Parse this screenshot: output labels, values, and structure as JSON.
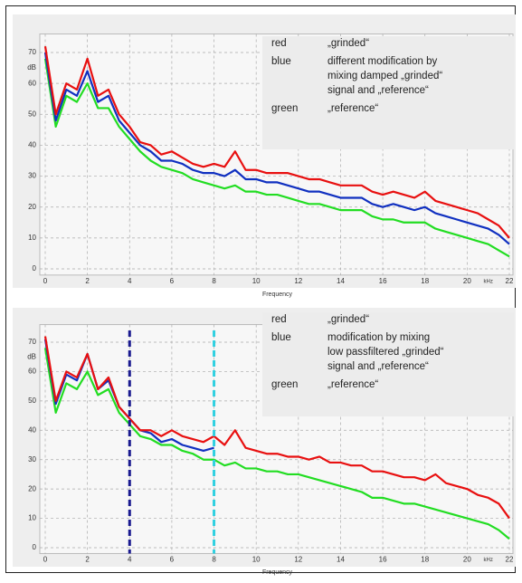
{
  "chart_data": [
    {
      "type": "line",
      "x_label": "Frequency",
      "x_unit": "kHz",
      "y_unit": "dB",
      "xlim": [
        0,
        22
      ],
      "xticks": [
        0,
        2,
        4,
        6,
        8,
        10,
        12,
        14,
        16,
        18,
        20,
        22
      ],
      "ylim": [
        -2,
        76
      ],
      "yticks": [
        0,
        10,
        20,
        30,
        40,
        50,
        60,
        70
      ],
      "grid": true,
      "x": [
        0,
        0.5,
        1,
        1.5,
        2,
        2.5,
        3,
        3.5,
        4,
        4.5,
        5,
        5.5,
        6,
        6.5,
        7,
        7.5,
        8,
        8.5,
        9,
        9.5,
        10,
        10.5,
        11,
        11.5,
        12,
        12.5,
        13,
        13.5,
        14,
        14.5,
        15,
        15.5,
        16,
        16.5,
        17,
        17.5,
        18,
        18.5,
        19,
        19.5,
        20,
        20.5,
        21,
        21.5,
        22
      ],
      "series": [
        {
          "name": "green",
          "color": "#22dd22",
          "description": [
            "„reference“"
          ],
          "values": [
            68,
            46,
            56,
            54,
            60,
            52,
            52,
            46,
            42,
            38,
            35,
            33,
            32,
            31,
            29,
            28,
            27,
            26,
            27,
            25,
            25,
            24,
            24,
            23,
            22,
            21,
            21,
            20,
            19,
            19,
            19,
            17,
            16,
            16,
            15,
            15,
            15,
            13,
            12,
            11,
            10,
            9,
            8,
            6,
            4
          ]
        },
        {
          "name": "blue",
          "color": "#1030c0",
          "description": [
            "different modification by",
            "mixing damped „grinded“",
            "signal and „reference“"
          ],
          "values": [
            70,
            48,
            58,
            56,
            64,
            54,
            56,
            48,
            44,
            40,
            38,
            35,
            35,
            34,
            32,
            31,
            31,
            30,
            32,
            29,
            29,
            28,
            28,
            27,
            26,
            25,
            25,
            24,
            23,
            23,
            23,
            21,
            20,
            21,
            20,
            19,
            20,
            18,
            17,
            16,
            15,
            14,
            13,
            11,
            8
          ]
        },
        {
          "name": "red",
          "color": "#e81010",
          "description": [
            "„grinded“"
          ],
          "values": [
            72,
            50,
            60,
            58,
            68,
            56,
            58,
            50,
            46,
            41,
            40,
            37,
            38,
            36,
            34,
            33,
            34,
            33,
            38,
            32,
            32,
            31,
            31,
            31,
            30,
            29,
            29,
            28,
            27,
            27,
            27,
            25,
            24,
            25,
            24,
            23,
            25,
            22,
            21,
            20,
            19,
            18,
            16,
            14,
            10
          ]
        }
      ]
    },
    {
      "type": "line",
      "x_label": "Frequency",
      "x_unit": "kHz",
      "y_unit": "dB",
      "xlim": [
        0,
        22
      ],
      "xticks": [
        0,
        2,
        4,
        6,
        8,
        10,
        12,
        14,
        16,
        18,
        20,
        22
      ],
      "ylim": [
        -2,
        76
      ],
      "yticks": [
        0,
        10,
        20,
        30,
        40,
        50,
        60,
        70
      ],
      "grid": true,
      "vlines": [
        {
          "x": 4,
          "color": "#1a1a90"
        },
        {
          "x": 8,
          "color": "#30d0e0"
        }
      ],
      "x": [
        0,
        0.5,
        1,
        1.5,
        2,
        2.5,
        3,
        3.5,
        4,
        4.5,
        5,
        5.5,
        6,
        6.5,
        7,
        7.5,
        8,
        8.5,
        9,
        9.5,
        10,
        10.5,
        11,
        11.5,
        12,
        12.5,
        13,
        13.5,
        14,
        14.5,
        15,
        15.5,
        16,
        16.5,
        17,
        17.5,
        18,
        18.5,
        19,
        19.5,
        20,
        20.5,
        21,
        21.5,
        22
      ],
      "series": [
        {
          "name": "green",
          "color": "#22dd22",
          "description": [
            "„reference“"
          ],
          "values": [
            68,
            46,
            56,
            54,
            60,
            52,
            54,
            46,
            42,
            38,
            37,
            35,
            35,
            33,
            32,
            30,
            30,
            28,
            29,
            27,
            27,
            26,
            26,
            25,
            25,
            24,
            23,
            22,
            21,
            20,
            19,
            17,
            17,
            16,
            15,
            15,
            14,
            13,
            12,
            11,
            10,
            9,
            8,
            6,
            3
          ]
        },
        {
          "name": "blue",
          "color": "#1030c0",
          "description": [
            "modification by mixing",
            "low passfiltered „grinded“",
            "signal and „reference“"
          ],
          "values": [
            71,
            49,
            59,
            57,
            66,
            54,
            57,
            48,
            44,
            40,
            39,
            36,
            37,
            35,
            34,
            33,
            34,
            null,
            null,
            null,
            null,
            null,
            null,
            null,
            null,
            null,
            null,
            null,
            null,
            null,
            null,
            null,
            null,
            null,
            null,
            null,
            null,
            null,
            null,
            null,
            null,
            null,
            null,
            null,
            null
          ]
        },
        {
          "name": "red",
          "color": "#e81010",
          "description": [
            "„grinded“"
          ],
          "values": [
            72,
            50,
            60,
            58,
            66,
            54,
            58,
            48,
            44,
            40,
            40,
            38,
            40,
            38,
            37,
            36,
            38,
            35,
            40,
            34,
            33,
            32,
            32,
            31,
            31,
            30,
            31,
            29,
            29,
            28,
            28,
            26,
            26,
            25,
            24,
            24,
            23,
            25,
            22,
            21,
            20,
            18,
            17,
            15,
            10
          ]
        }
      ]
    }
  ]
}
